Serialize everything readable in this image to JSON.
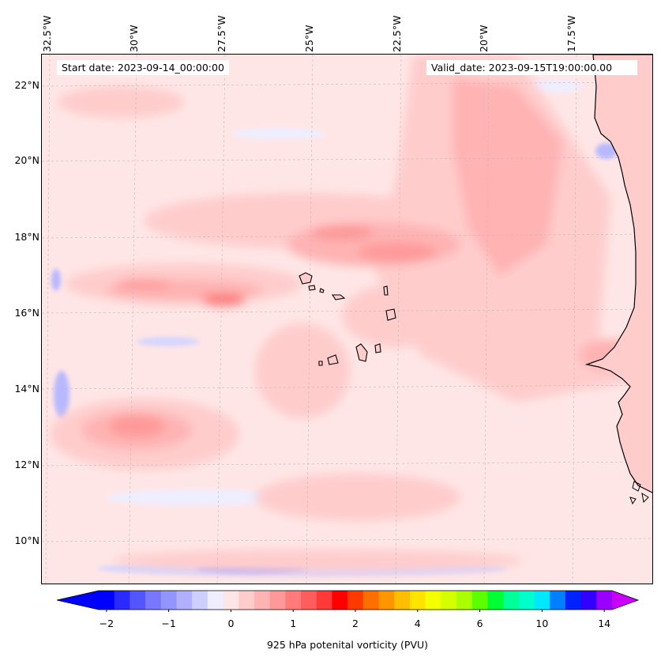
{
  "map": {
    "start_date": "Start date: 2023-09-14_00:00:00",
    "valid_date": "Valid_date: 2023-09-15T19:00:00.00",
    "lon_labels": [
      "32.5°W",
      "30°W",
      "27.5°W",
      "25°W",
      "22.5°W",
      "20°W",
      "17.5°W"
    ],
    "lat_labels": [
      "22°N",
      "20°N",
      "18°N",
      "16°N",
      "14°N",
      "12°N",
      "10°N"
    ],
    "lon_range": [
      -32.5,
      -15
    ],
    "lat_range": [
      9,
      22.8
    ]
  },
  "colorbar": {
    "label": "925 hPa potenital vorticity (PVU)",
    "tick_labels": [
      "−2",
      "−1",
      "0",
      "1",
      "2",
      "4",
      "6",
      "10",
      "14"
    ],
    "colors": [
      "#0000ff",
      "#2a2aff",
      "#5555ff",
      "#7777ff",
      "#9494ff",
      "#b0b0ff",
      "#cfcfff",
      "#eeeeff",
      "#ffe6e6",
      "#ffcccc",
      "#ffb3b3",
      "#ff9999",
      "#ff7b7b",
      "#ff5c5c",
      "#ff3838",
      "#ff0000",
      "#ff3a00",
      "#ff6e00",
      "#ff9600",
      "#ffbe00",
      "#ffe400",
      "#f4ff00",
      "#d4ff00",
      "#aaff00",
      "#5cff00",
      "#00ff33",
      "#00ff99",
      "#00ffcc",
      "#00e8ff",
      "#0080ff",
      "#0022ff",
      "#3300ff",
      "#9900ff"
    ],
    "under_color": "#0000ff",
    "over_color": "#cc00ff"
  }
}
